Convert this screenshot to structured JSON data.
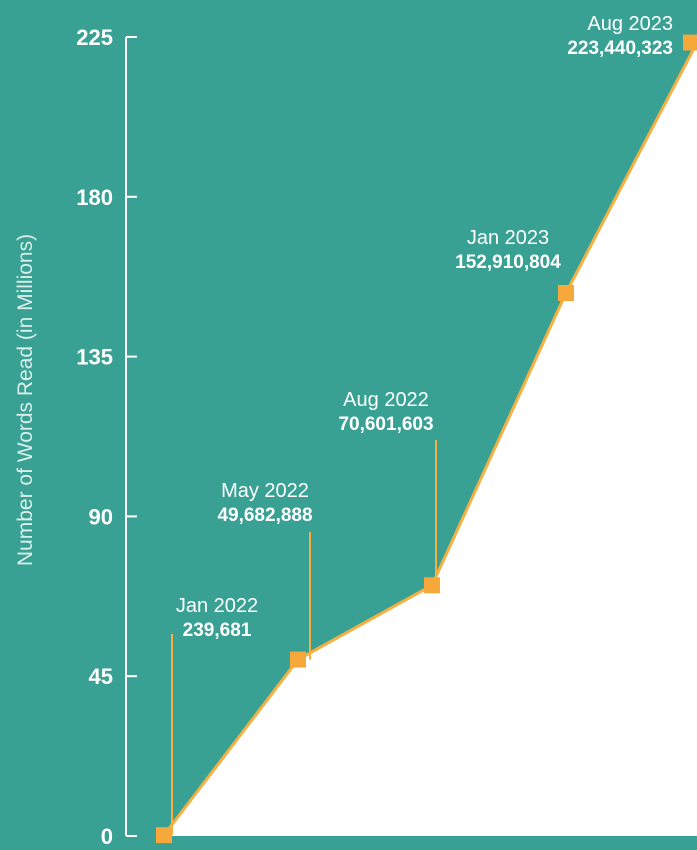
{
  "chart_data": {
    "type": "area",
    "ylabel": "Number of Words Read (in Millions)",
    "y_ticks": [
      "0",
      "45",
      "90",
      "135",
      "180",
      "225"
    ],
    "ylim": [
      0,
      225
    ],
    "grid": false,
    "points": [
      {
        "date": "Jan 2022",
        "label": "239,681",
        "value": 0.239681
      },
      {
        "date": "May 2022",
        "label": "49,682,888",
        "value": 49.682888
      },
      {
        "date": "Aug 2022",
        "label": "70,601,603",
        "value": 70.601603
      },
      {
        "date": "Jan 2023",
        "label": "152,910,804",
        "value": 152.910804
      },
      {
        "date": "Aug 2023",
        "label": "223,440,323",
        "value": 223.440323
      }
    ],
    "colors": {
      "background": "#38a193",
      "line": "#f5b041",
      "marker": "#f7a83a",
      "area_below": "#ffffff",
      "text": "#ffffff"
    }
  }
}
